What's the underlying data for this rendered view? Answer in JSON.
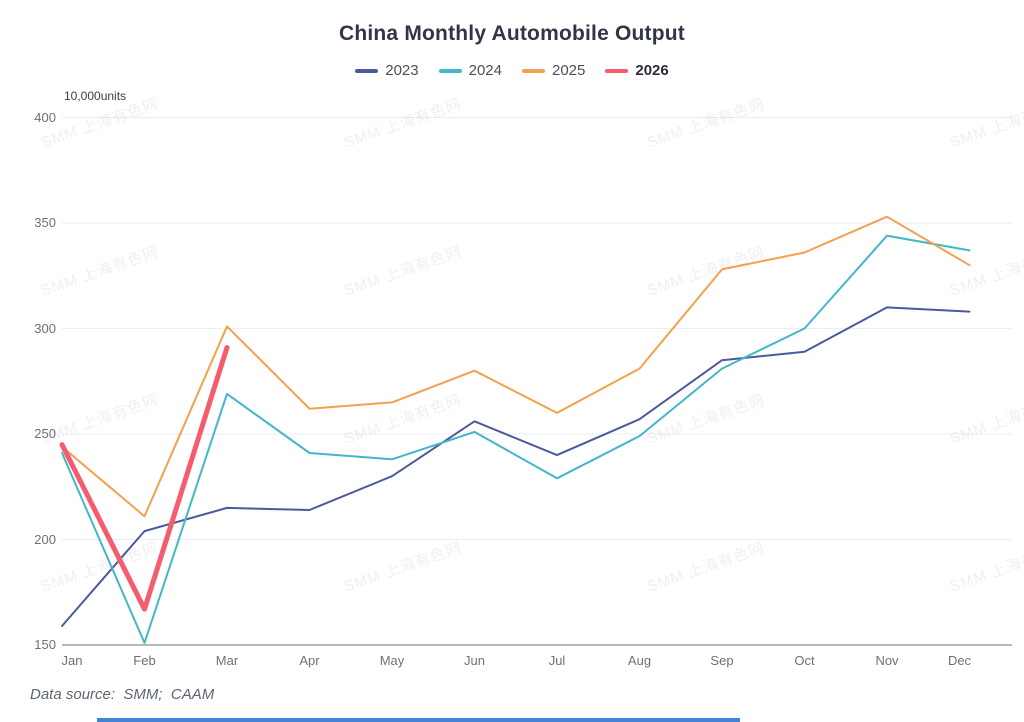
{
  "title": "China Monthly Automobile Output",
  "unit_label": "10,000units",
  "data_source": "Data source:  SMM;  CAAM",
  "watermark": "SMM 上海有色网",
  "colors": {
    "series_2023": "#4c5a9c",
    "series_2024": "#44b6ca",
    "series_2025": "#f4a04d",
    "series_2026": "#f65b6e",
    "grid": "#E9EDF4",
    "axis": "#6E7079",
    "bottom_bar": "#4283d6"
  },
  "chart_data": {
    "type": "line",
    "title": "China Monthly Automobile Output",
    "xlabel": "",
    "ylabel": "10,000units",
    "x": [
      "Jan",
      "Feb",
      "Mar",
      "Apr",
      "May",
      "Jun",
      "Jul",
      "Aug",
      "Sep",
      "Oct",
      "Nov",
      "Dec"
    ],
    "ylim": [
      150,
      400
    ],
    "yticks": [
      150,
      200,
      250,
      300,
      350,
      400
    ],
    "grid": true,
    "legend_position": "top",
    "series": [
      {
        "name": "2023",
        "color": "#4c5a9c",
        "line_width": 2,
        "values": [
          159,
          204,
          215,
          214,
          230,
          256,
          240,
          257,
          285,
          289,
          310,
          308
        ]
      },
      {
        "name": "2024",
        "color": "#44b6ca",
        "line_width": 2,
        "values": [
          241,
          151,
          269,
          241,
          238,
          251,
          229,
          249,
          281,
          300,
          344,
          337
        ]
      },
      {
        "name": "2025",
        "color": "#f4a04d",
        "line_width": 2,
        "values": [
          244,
          211,
          301,
          262,
          265,
          280,
          260,
          281,
          328,
          336,
          353,
          330
        ]
      },
      {
        "name": "2026",
        "color": "#f65b6e",
        "line_width": 5,
        "bold_legend": true,
        "values": [
          245,
          167,
          291,
          null,
          null,
          null,
          null,
          null,
          null,
          null,
          null,
          null
        ]
      }
    ]
  }
}
